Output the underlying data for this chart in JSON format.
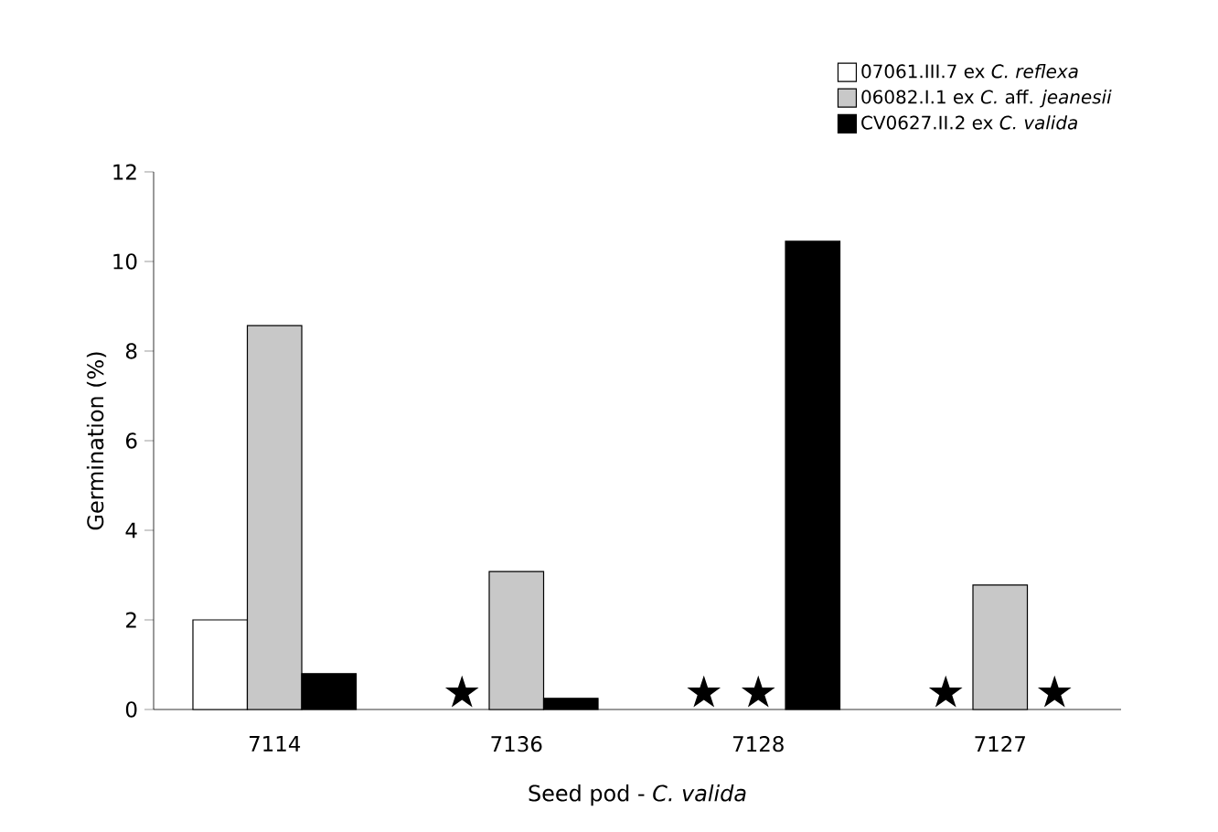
{
  "chart_data": {
    "type": "bar",
    "xlabel": "Seed pod - *C. valida*",
    "ylabel": "Germination (%)",
    "categories": [
      "7114",
      "7136",
      "7128",
      "7127"
    ],
    "series": [
      {
        "name": "07061.III.7 ex *C. reflexa*",
        "color": "#ffffff",
        "values": [
          2.0,
          null,
          null,
          null
        ]
      },
      {
        "name": "06082.I.1 ex *C.* aff. *jeanesii*",
        "color": "#c8c8c8",
        "values": [
          8.57,
          3.08,
          null,
          2.78
        ]
      },
      {
        "name": "CV0627.II.2 ex *C. valida*",
        "color": "#000000",
        "values": [
          0.8,
          0.25,
          10.45,
          null
        ]
      }
    ],
    "ylim": [
      0,
      12
    ],
    "yticks": [
      0,
      2,
      4,
      6,
      8,
      10,
      12
    ],
    "legend": "top right",
    "annotations": [
      "★",
      "★",
      "★",
      "★",
      "★"
    ]
  }
}
